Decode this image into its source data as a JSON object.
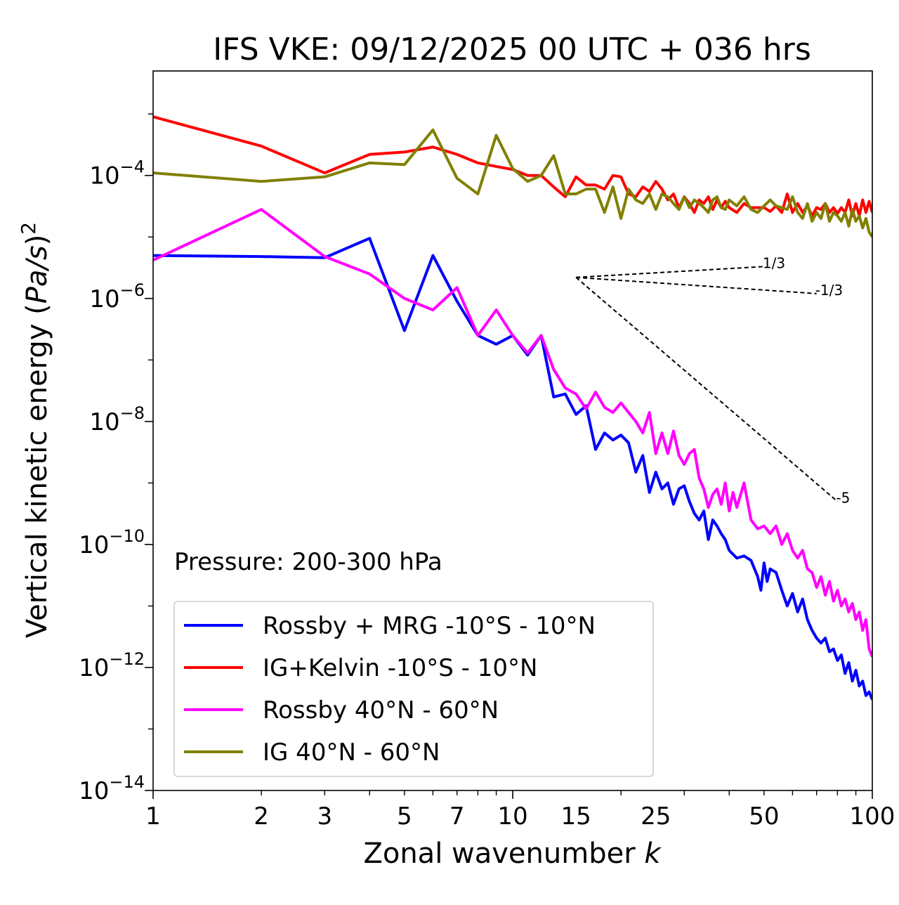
{
  "chart_data": {
    "type": "line",
    "title": "IFS VKE: 09/12/2025 00 UTC + 036 hrs",
    "xlabel": "Zonal wavenumber k",
    "xlabel_main": "Zonal wavenumber ",
    "xlabel_var": "k",
    "ylabel": "Vertical kinetic energy (Pa/s)^2",
    "ylabel_main": "Vertical kinetic energy (",
    "ylabel_var": "Pa/s",
    "ylabel_close": ")",
    "ylabel_exp": "2",
    "xscale": "log",
    "yscale": "log",
    "xlim": [
      1,
      100
    ],
    "ylim": [
      1e-14,
      0.005
    ],
    "x_ticks": [
      {
        "value": 1,
        "label": "1"
      },
      {
        "value": 2,
        "label": "2"
      },
      {
        "value": 3,
        "label": "3"
      },
      {
        "value": 5,
        "label": "5"
      },
      {
        "value": 7,
        "label": "7"
      },
      {
        "value": 10,
        "label": "10"
      },
      {
        "value": 15,
        "label": "15"
      },
      {
        "value": 25,
        "label": "25"
      },
      {
        "value": 50,
        "label": "50"
      },
      {
        "value": 100,
        "label": "100"
      }
    ],
    "y_ticks": [
      {
        "exp": -4,
        "base": "10",
        "sup": "−4"
      },
      {
        "exp": -6,
        "base": "10",
        "sup": "−6"
      },
      {
        "exp": -8,
        "base": "10",
        "sup": "−8"
      },
      {
        "exp": -10,
        "base": "10",
        "sup": "−10"
      },
      {
        "exp": -12,
        "base": "10",
        "sup": "−12"
      },
      {
        "exp": -14,
        "base": "10",
        "sup": "−14"
      }
    ],
    "annotation": "Pressure: 200-300 hPa",
    "legend_position": "lower-left",
    "series": [
      {
        "name": "Rossby + MRG -10°S - 10°N",
        "color": "#0000ff",
        "points": [
          [
            1,
            5e-06
          ],
          [
            2,
            4.8e-06
          ],
          [
            3,
            4.6e-06
          ],
          [
            4,
            9.5e-06
          ],
          [
            5,
            3e-07
          ],
          [
            6,
            5e-06
          ],
          [
            7,
            9e-07
          ],
          [
            8,
            2.5e-07
          ],
          [
            9,
            1.8e-07
          ],
          [
            10,
            2.5e-07
          ],
          [
            11,
            1.2e-07
          ],
          [
            12,
            2.5e-07
          ],
          [
            13,
            2.5e-08
          ],
          [
            14,
            2.8e-08
          ],
          [
            15,
            1.3e-08
          ],
          [
            16,
            1.8e-08
          ],
          [
            17,
            3.5e-09
          ],
          [
            18,
            6.5e-09
          ],
          [
            19,
            5e-09
          ],
          [
            20,
            6e-09
          ],
          [
            21,
            4.5e-09
          ],
          [
            22,
            1.5e-09
          ],
          [
            23,
            2.8e-09
          ],
          [
            24,
            7e-10
          ],
          [
            25,
            1.5e-09
          ],
          [
            26,
            8e-10
          ],
          [
            27,
            1e-09
          ],
          [
            28,
            4.5e-10
          ],
          [
            29,
            8e-10
          ],
          [
            30,
            9e-10
          ],
          [
            31,
            5e-10
          ],
          [
            32,
            3.2e-10
          ],
          [
            33,
            2.5e-10
          ],
          [
            34,
            3.5e-10
          ],
          [
            35,
            1.2e-10
          ],
          [
            36,
            2.5e-10
          ],
          [
            37,
            2e-10
          ],
          [
            38,
            1.5e-10
          ],
          [
            39,
            1.2e-10
          ],
          [
            40,
            8e-11
          ],
          [
            42,
            6e-11
          ],
          [
            44,
            6.5e-11
          ],
          [
            46,
            5.5e-11
          ],
          [
            48,
            3e-11
          ],
          [
            49,
            1.8e-11
          ],
          [
            50,
            5e-11
          ],
          [
            51,
            2.5e-11
          ],
          [
            52,
            4e-11
          ],
          [
            54,
            3.5e-11
          ],
          [
            56,
            1.8e-11
          ],
          [
            58,
            1e-11
          ],
          [
            60,
            1.6e-11
          ],
          [
            62,
            8e-12
          ],
          [
            64,
            1.3e-11
          ],
          [
            66,
            6e-12
          ],
          [
            68,
            4e-12
          ],
          [
            70,
            3e-12
          ],
          [
            72,
            2.5e-12
          ],
          [
            74,
            3e-12
          ],
          [
            76,
            1.8e-12
          ],
          [
            78,
            2e-12
          ],
          [
            80,
            1.3e-12
          ],
          [
            82,
            1.6e-12
          ],
          [
            84,
            8e-13
          ],
          [
            86,
            1.2e-12
          ],
          [
            88,
            6e-13
          ],
          [
            90,
            9e-13
          ],
          [
            92,
            5e-13
          ],
          [
            94,
            6e-13
          ],
          [
            96,
            3.5e-13
          ],
          [
            98,
            4e-13
          ],
          [
            100,
            3e-13
          ]
        ]
      },
      {
        "name": "IG+Kelvin -10°S - 10°N",
        "color": "#ff0000",
        "points": [
          [
            1,
            0.0009
          ],
          [
            2,
            0.0003
          ],
          [
            3,
            0.00011
          ],
          [
            4,
            0.00022
          ],
          [
            5,
            0.00024
          ],
          [
            6,
            0.00029
          ],
          [
            7,
            0.00022
          ],
          [
            8,
            0.00016
          ],
          [
            9,
            0.00014
          ],
          [
            10,
            0.000125
          ],
          [
            11,
            0.0001
          ],
          [
            12,
            0.0001
          ],
          [
            13,
            6.5e-05
          ],
          [
            14,
            4.5e-05
          ],
          [
            15,
            9.5e-05
          ],
          [
            16,
            7e-05
          ],
          [
            17,
            7e-05
          ],
          [
            18,
            6e-05
          ],
          [
            19,
            0.0001
          ],
          [
            20,
            9.5e-05
          ],
          [
            21,
            5e-05
          ],
          [
            22,
            4.5e-05
          ],
          [
            23,
            6.5e-05
          ],
          [
            24,
            5.5e-05
          ],
          [
            25,
            8e-05
          ],
          [
            26,
            6e-05
          ],
          [
            27,
            4e-05
          ],
          [
            28,
            5e-05
          ],
          [
            29,
            3e-05
          ],
          [
            30,
            4.5e-05
          ],
          [
            31,
            3.5e-05
          ],
          [
            32,
            2.5e-05
          ],
          [
            33,
            4e-05
          ],
          [
            34,
            3.5e-05
          ],
          [
            35,
            4.5e-05
          ],
          [
            36,
            2.8e-05
          ],
          [
            37,
            4e-05
          ],
          [
            38,
            3e-05
          ],
          [
            39,
            3.8e-05
          ],
          [
            40,
            3e-05
          ],
          [
            42,
            2.5e-05
          ],
          [
            44,
            3.5e-05
          ],
          [
            46,
            3e-05
          ],
          [
            48,
            3e-05
          ],
          [
            50,
            3e-05
          ],
          [
            52,
            2.6e-05
          ],
          [
            54,
            3.2e-05
          ],
          [
            56,
            2.5e-05
          ],
          [
            58,
            5e-05
          ],
          [
            60,
            2.5e-05
          ],
          [
            62,
            3.5e-05
          ],
          [
            64,
            2.5e-05
          ],
          [
            66,
            3.2e-05
          ],
          [
            68,
            2.2e-05
          ],
          [
            70,
            3e-05
          ],
          [
            72,
            2.8e-05
          ],
          [
            74,
            3.5e-05
          ],
          [
            76,
            2.5e-05
          ],
          [
            78,
            3e-05
          ],
          [
            80,
            2.4e-05
          ],
          [
            82,
            3e-05
          ],
          [
            84,
            2.5e-05
          ],
          [
            86,
            4e-05
          ],
          [
            88,
            2.2e-05
          ],
          [
            90,
            3.5e-05
          ],
          [
            92,
            2.2e-05
          ],
          [
            94,
            4e-05
          ],
          [
            96,
            2.5e-05
          ],
          [
            98,
            3.8e-05
          ],
          [
            100,
            2.5e-05
          ]
        ]
      },
      {
        "name": "Rossby 40°N - 60°N",
        "color": "#ff00ff",
        "points": [
          [
            1,
            4.2e-06
          ],
          [
            2,
            2.8e-05
          ],
          [
            3,
            4.8e-06
          ],
          [
            4,
            2.5e-06
          ],
          [
            5,
            1e-06
          ],
          [
            6,
            6.5e-07
          ],
          [
            7,
            1.5e-06
          ],
          [
            8,
            2.5e-07
          ],
          [
            9,
            6.5e-07
          ],
          [
            10,
            2.5e-07
          ],
          [
            11,
            1.3e-07
          ],
          [
            12,
            2.5e-07
          ],
          [
            13,
            7e-08
          ],
          [
            14,
            3.5e-08
          ],
          [
            15,
            2.8e-08
          ],
          [
            16,
            1.6e-08
          ],
          [
            17,
            3e-08
          ],
          [
            18,
            1.7e-08
          ],
          [
            19,
            1.4e-08
          ],
          [
            20,
            2e-08
          ],
          [
            21,
            1.4e-08
          ],
          [
            22,
            1e-08
          ],
          [
            23,
            6.5e-09
          ],
          [
            24,
            1.4e-08
          ],
          [
            25,
            3e-09
          ],
          [
            26,
            6.5e-09
          ],
          [
            27,
            3e-09
          ],
          [
            28,
            7e-09
          ],
          [
            29,
            2.8e-09
          ],
          [
            30,
            2e-09
          ],
          [
            31,
            3e-09
          ],
          [
            32,
            3.5e-09
          ],
          [
            33,
            1.2e-09
          ],
          [
            34,
            8e-10
          ],
          [
            35,
            4e-10
          ],
          [
            36,
            6.5e-10
          ],
          [
            37,
            8e-10
          ],
          [
            38,
            4.5e-10
          ],
          [
            39,
            1e-09
          ],
          [
            40,
            3.5e-10
          ],
          [
            41,
            7e-10
          ],
          [
            42,
            4e-10
          ],
          [
            44,
            1e-09
          ],
          [
            46,
            2.5e-10
          ],
          [
            48,
            1.8e-10
          ],
          [
            50,
            2e-10
          ],
          [
            52,
            1.5e-10
          ],
          [
            54,
            2e-10
          ],
          [
            56,
            1e-10
          ],
          [
            58,
            1.5e-10
          ],
          [
            60,
            8e-11
          ],
          [
            62,
            6e-11
          ],
          [
            64,
            8e-11
          ],
          [
            66,
            4e-11
          ],
          [
            68,
            3.5e-11
          ],
          [
            70,
            2e-11
          ],
          [
            72,
            3e-11
          ],
          [
            74,
            1.5e-11
          ],
          [
            76,
            2.5e-11
          ],
          [
            78,
            1.2e-11
          ],
          [
            80,
            1.8e-11
          ],
          [
            82,
            1e-11
          ],
          [
            84,
            1.3e-11
          ],
          [
            86,
            8e-12
          ],
          [
            88,
            1.1e-11
          ],
          [
            90,
            6e-12
          ],
          [
            92,
            8e-12
          ],
          [
            94,
            4e-12
          ],
          [
            96,
            6e-12
          ],
          [
            98,
            2e-12
          ],
          [
            100,
            1.5e-12
          ]
        ]
      },
      {
        "name": "IG 40°N - 60°N",
        "color": "#808000",
        "points": [
          [
            1,
            0.00011
          ],
          [
            2,
            8e-05
          ],
          [
            3,
            9.5e-05
          ],
          [
            4,
            0.00016
          ],
          [
            5,
            0.00015
          ],
          [
            6,
            0.00055
          ],
          [
            7,
            9e-05
          ],
          [
            8,
            5e-05
          ],
          [
            9,
            0.00045
          ],
          [
            10,
            0.00013
          ],
          [
            11,
            8e-05
          ],
          [
            12,
            0.0001
          ],
          [
            13,
            0.00021
          ],
          [
            14,
            5e-05
          ],
          [
            15,
            5e-05
          ],
          [
            16,
            6e-05
          ],
          [
            17,
            6e-05
          ],
          [
            18,
            2.5e-05
          ],
          [
            19,
            6.5e-05
          ],
          [
            20,
            2e-05
          ],
          [
            21,
            6e-05
          ],
          [
            22,
            4e-05
          ],
          [
            23,
            3.5e-05
          ],
          [
            24,
            5e-05
          ],
          [
            25,
            2.8e-05
          ],
          [
            26,
            5e-05
          ],
          [
            27,
            4.5e-05
          ],
          [
            28,
            3.5e-05
          ],
          [
            29,
            2.8e-05
          ],
          [
            30,
            4.5e-05
          ],
          [
            31,
            3e-05
          ],
          [
            32,
            4e-05
          ],
          [
            33,
            3.5e-05
          ],
          [
            34,
            3e-05
          ],
          [
            35,
            2.5e-05
          ],
          [
            36,
            4e-05
          ],
          [
            37,
            4.5e-05
          ],
          [
            38,
            3e-05
          ],
          [
            39,
            2.8e-05
          ],
          [
            40,
            4e-05
          ],
          [
            42,
            3.2e-05
          ],
          [
            44,
            4.5e-05
          ],
          [
            46,
            2.8e-05
          ],
          [
            48,
            2.5e-05
          ],
          [
            50,
            3.2e-05
          ],
          [
            52,
            4e-05
          ],
          [
            54,
            3.2e-05
          ],
          [
            56,
            3e-05
          ],
          [
            58,
            2.8e-05
          ],
          [
            60,
            4.5e-05
          ],
          [
            62,
            2.5e-05
          ],
          [
            64,
            2e-05
          ],
          [
            66,
            3.5e-05
          ],
          [
            68,
            1.8e-05
          ],
          [
            70,
            2.5e-05
          ],
          [
            72,
            2e-05
          ],
          [
            74,
            3.5e-05
          ],
          [
            76,
            1.8e-05
          ],
          [
            78,
            2.5e-05
          ],
          [
            80,
            2.2e-05
          ],
          [
            82,
            1.8e-05
          ],
          [
            84,
            2.5e-05
          ],
          [
            86,
            1.5e-05
          ],
          [
            88,
            2.8e-05
          ],
          [
            90,
            1.8e-05
          ],
          [
            92,
            2.2e-05
          ],
          [
            94,
            1.4e-05
          ],
          [
            96,
            2e-05
          ],
          [
            98,
            1.2e-05
          ],
          [
            100,
            1e-05
          ]
        ]
      }
    ],
    "reference_lines": [
      {
        "label": "1/3",
        "slope": 0.3333,
        "x": [
          15,
          50
        ],
        "y": [
          2.2e-06,
          3.3e-06
        ]
      },
      {
        "label": "-1/3",
        "slope": -0.3333,
        "x": [
          15,
          70
        ],
        "y": [
          2.2e-06,
          1.2e-06
        ]
      },
      {
        "label": "-5",
        "slope": -5,
        "x": [
          15,
          80
        ],
        "y": [
          2.2e-06,
          5e-10
        ]
      }
    ]
  }
}
